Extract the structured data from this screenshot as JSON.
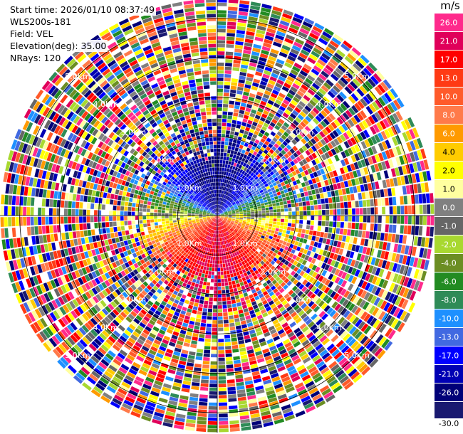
{
  "header": {
    "start_time": "Start time: 2026/01/10 08:37:49",
    "instrument": "WLS200s-181",
    "field": "Field: VEL",
    "elevation": "Elevation(deg): 35.00",
    "nrays": "NRays: 120"
  },
  "colorbar": {
    "unit": "m/s",
    "bottom_label": "-30.0",
    "entries": [
      {
        "label": "26.0",
        "color": "#ff2a8c"
      },
      {
        "label": "21.0",
        "color": "#e0005a"
      },
      {
        "label": "17.0",
        "color": "#ff0000"
      },
      {
        "label": "13.0",
        "color": "#ff3a14"
      },
      {
        "label": "10.0",
        "color": "#ff5a2a"
      },
      {
        "label": "8.0",
        "color": "#ff7a4a"
      },
      {
        "label": "6.0",
        "color": "#ff9a00"
      },
      {
        "label": "4.0",
        "color": "#ffcc00"
      },
      {
        "label": "2.0",
        "color": "#ffff00"
      },
      {
        "label": "1.0",
        "color": "#ffffa0"
      },
      {
        "label": "0.0",
        "color": "#808080"
      },
      {
        "label": "-1.0",
        "color": "#666666"
      },
      {
        "label": "-2.0",
        "color": "#a8d830"
      },
      {
        "label": "-4.0",
        "color": "#6b8e23"
      },
      {
        "label": "-6.0",
        "color": "#228b22"
      },
      {
        "label": "-8.0",
        "color": "#2e8b57"
      },
      {
        "label": "-10.0",
        "color": "#1e90ff"
      },
      {
        "label": "-13.0",
        "color": "#4169e1"
      },
      {
        "label": "-17.0",
        "color": "#0000ff"
      },
      {
        "label": "-21.0",
        "color": "#0000b4"
      },
      {
        "label": "-26.0",
        "color": "#000078"
      },
      {
        "label": "-30.0",
        "color": "#191970"
      }
    ]
  },
  "chart_data": {
    "type": "heatmap",
    "projection": "polar",
    "title": "",
    "field": "VEL",
    "units": "m/s",
    "nrays": 120,
    "elevation_deg": 35.0,
    "range_ring_labels": [
      "1.0Km",
      "2.0Km",
      "3.0Km",
      "4.0Km",
      "5.0Km"
    ],
    "range_rings_km": [
      1.0,
      2.0,
      3.0,
      4.0,
      5.0
    ],
    "max_range_km": 5.5,
    "colorbar_ticks": [
      26.0,
      21.0,
      17.0,
      13.0,
      10.0,
      8.0,
      6.0,
      4.0,
      2.0,
      1.0,
      0.0,
      -1.0,
      -2.0,
      -4.0,
      -6.0,
      -8.0,
      -10.0,
      -13.0,
      -17.0,
      -21.0,
      -26.0,
      -30.0
    ],
    "near_field_pattern": {
      "north_sector": "strongly negative (blue, about -17 to -26 m/s)",
      "south_sector": "positive (red/pink, about 13 to 26 m/s)",
      "east_west": "near zero (gray/green/yellow)"
    },
    "far_field": "noisy, all colors randomly distributed"
  }
}
